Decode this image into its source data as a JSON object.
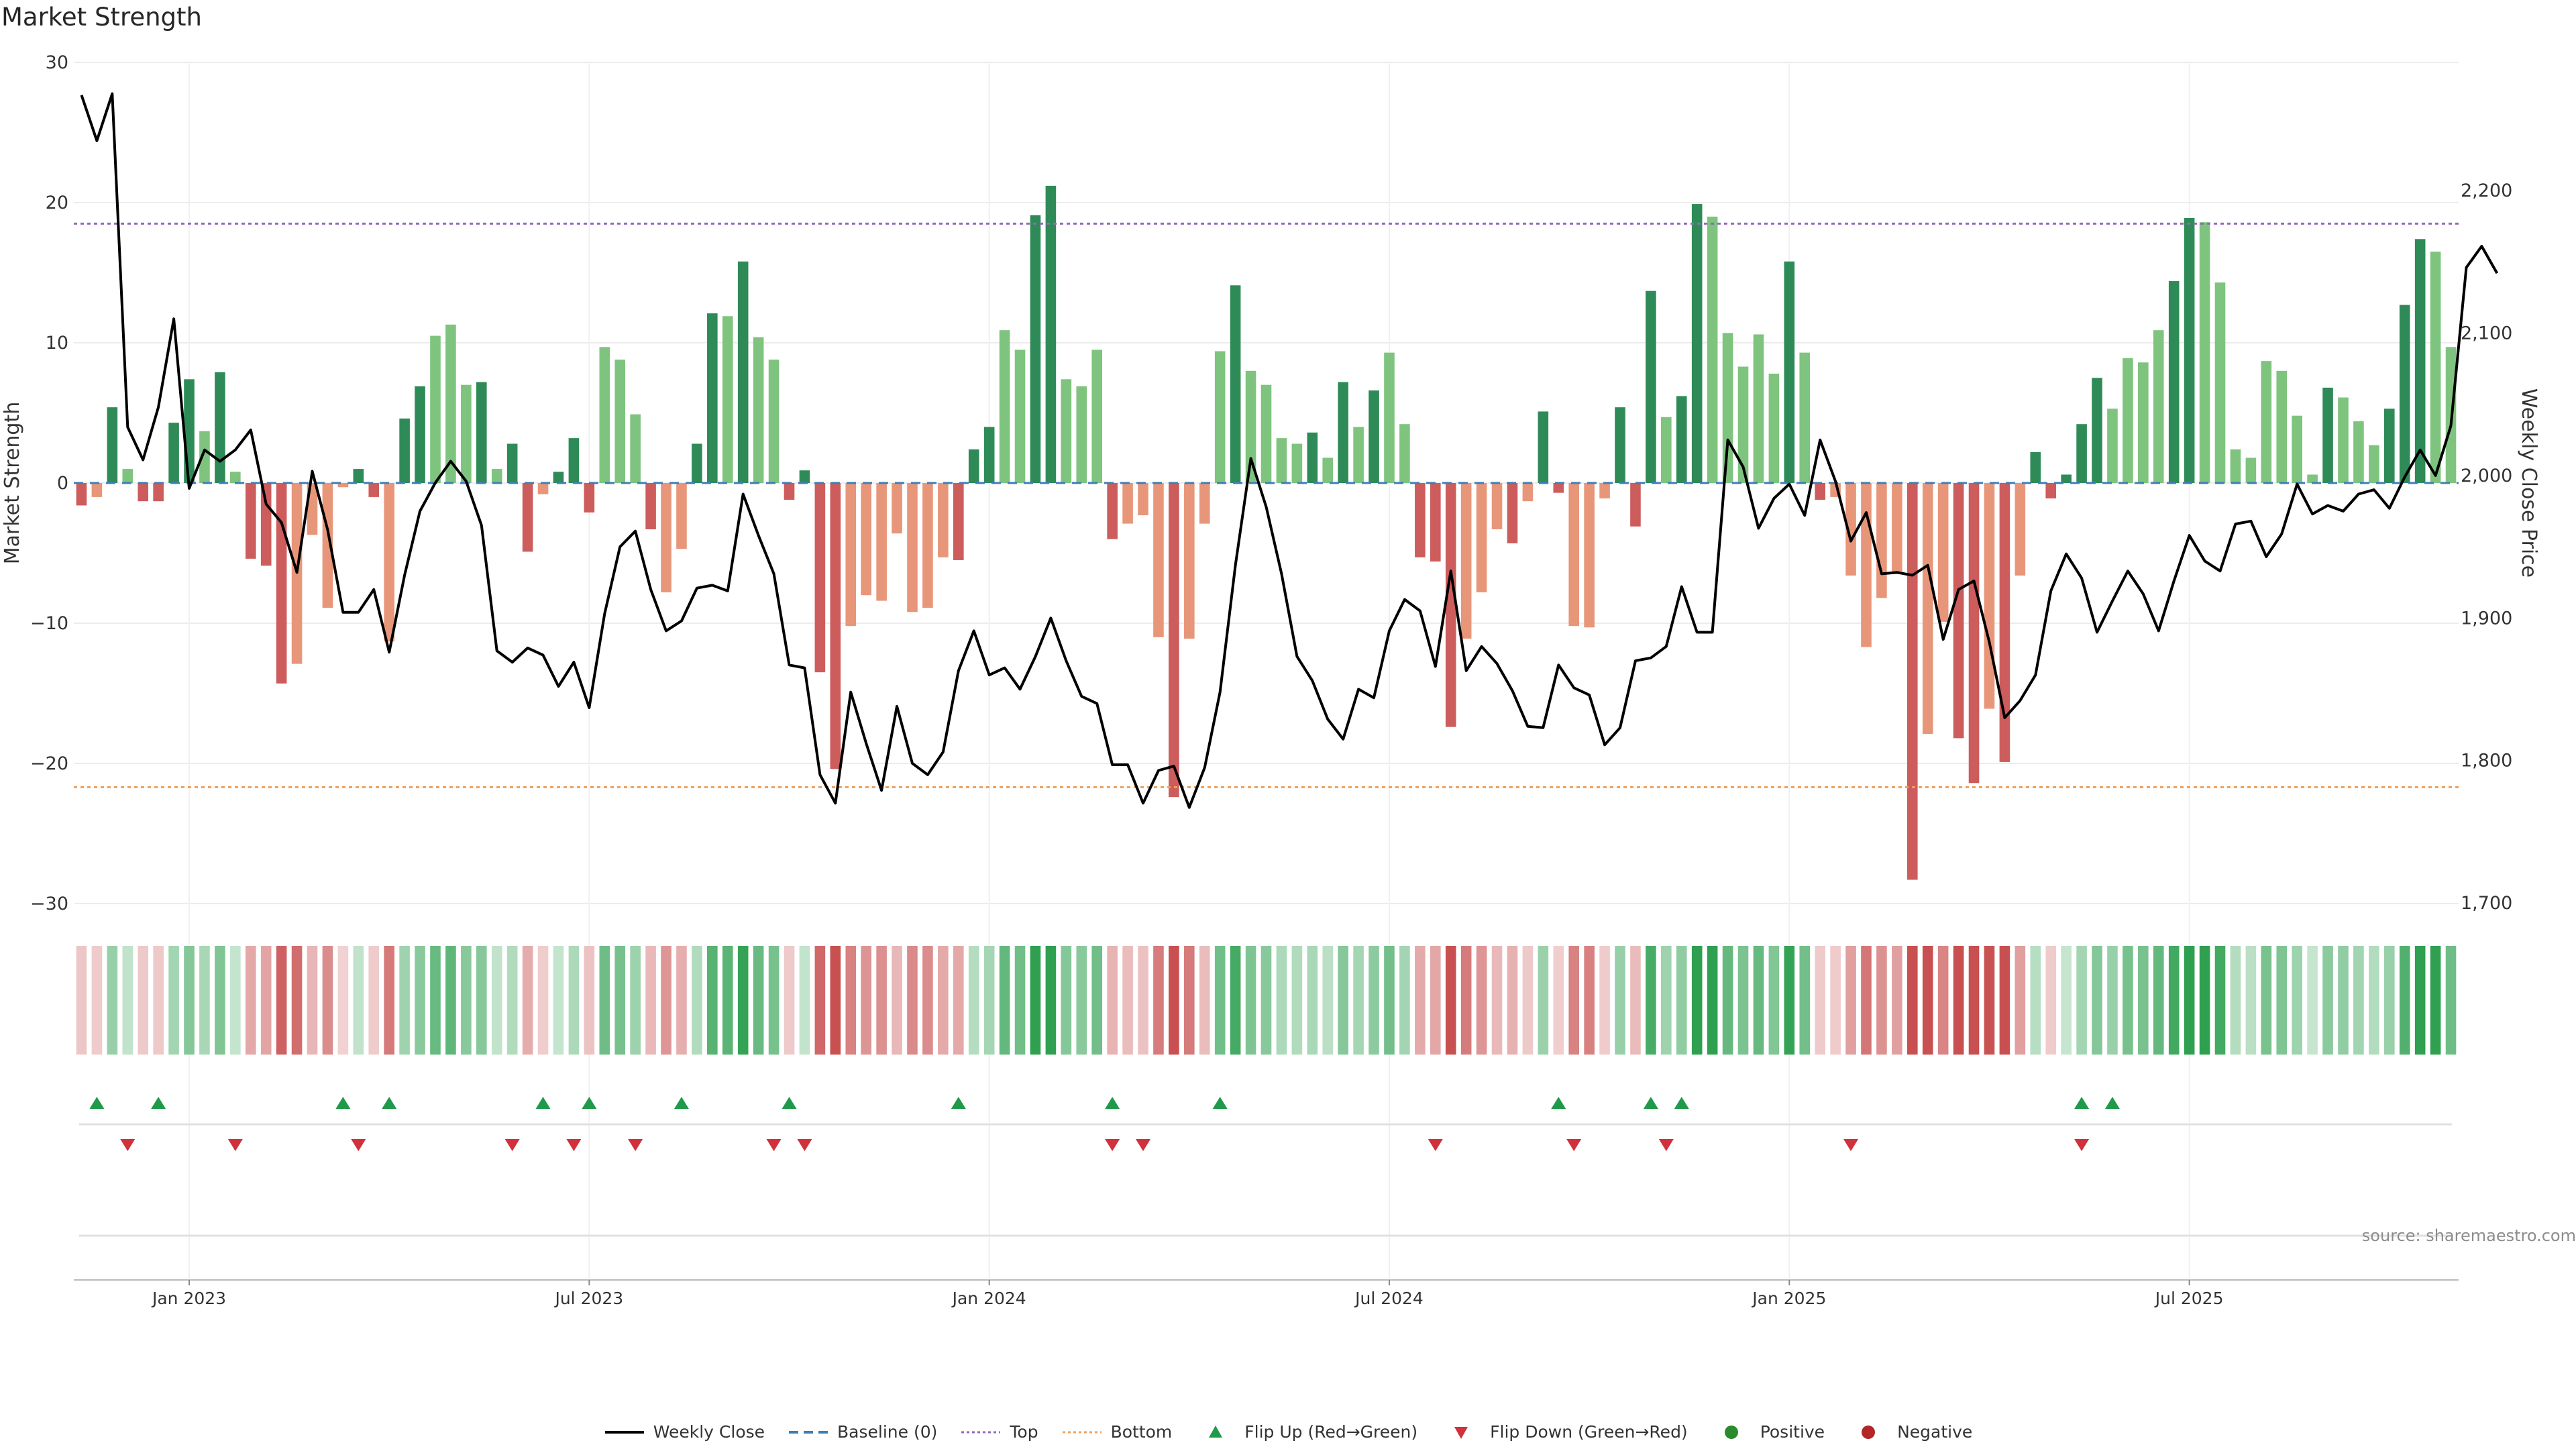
{
  "title": "Market Strength",
  "source": "source: sharemaestro.com",
  "legend": [
    {
      "key": "close",
      "label": "Weekly Close",
      "sym": "line",
      "color": "#000000"
    },
    {
      "key": "base",
      "label": "Baseline (0)",
      "sym": "dash",
      "color": "#3d7fb5"
    },
    {
      "key": "top",
      "label": "Top",
      "sym": "dot",
      "color": "#9467bd"
    },
    {
      "key": "bottom",
      "label": "Bottom",
      "sym": "dot",
      "color": "#f0a05a"
    },
    {
      "key": "up",
      "label": "Flip Up (Red→Green)",
      "sym": "tri-up",
      "color": "#1f9a4a"
    },
    {
      "key": "down",
      "label": "Flip Down (Green→Red)",
      "sym": "tri-down",
      "color": "#d0313a"
    },
    {
      "key": "pos",
      "label": "Positive",
      "sym": "circle",
      "color": "#2b8a2b"
    },
    {
      "key": "neg",
      "label": "Negative",
      "sym": "circle",
      "color": "#b42528"
    }
  ],
  "colors": {
    "strong_pos": "#2e8b57",
    "weak_pos": "#7ec47e",
    "strong_neg": "#cd5c5c",
    "weak_neg": "#e8967a",
    "close_line": "#000000",
    "top_line": "#9467bd",
    "bottom_line": "#f0a05a",
    "baseline": "#3d7fb5"
  },
  "chart_data": {
    "type": "bar",
    "left_axis": {
      "label": "Market Strength",
      "ylim": [
        -30,
        30
      ],
      "ticks": [
        30,
        20,
        10,
        0,
        -10,
        -20,
        -30
      ]
    },
    "right_axis": {
      "label": "Weekly Close Price",
      "ylim": [
        1700,
        2290
      ],
      "ticks": [
        1700,
        1800,
        1900,
        2000,
        2100,
        2200
      ],
      "tick_labels": [
        "1,700",
        "1,800",
        "1,900",
        "2,000",
        "2,100",
        "2,200"
      ]
    },
    "x_ticks": [
      {
        "label": "Jan 2023",
        "week": 7.5
      },
      {
        "label": "Jul 2023",
        "week": 33.5
      },
      {
        "label": "Jan 2024",
        "week": 59.5
      },
      {
        "label": "Jul 2024",
        "week": 85.5
      },
      {
        "label": "Jan 2025",
        "week": 111.5
      },
      {
        "label": "Jul 2025",
        "week": 137.5
      }
    ],
    "reference_lines": {
      "top": 18.5,
      "bottom": -21.7,
      "baseline": 0
    },
    "strength": [
      -1.6,
      -1,
      5.4,
      1,
      -1.3,
      -1.3,
      4.3,
      7.4,
      3.7,
      7.9,
      0.8,
      -5.4,
      -5.9,
      -14.3,
      -12.9,
      -3.7,
      -8.9,
      -0.3,
      1,
      -1,
      -11.3,
      4.6,
      6.9,
      10.5,
      11.3,
      7,
      7.2,
      1,
      2.8,
      -4.9,
      -0.8,
      0.8,
      3.2,
      -2.1,
      9.7,
      8.8,
      4.9,
      -3.3,
      -7.8,
      -4.7,
      2.8,
      12.1,
      11.9,
      15.8,
      10.4,
      8.8,
      -1.2,
      0.9,
      -13.5,
      -20.4,
      -10.2,
      -8,
      -8.4,
      -3.6,
      -9.2,
      -8.9,
      -5.3,
      -5.5,
      2.4,
      4,
      10.9,
      9.5,
      19.1,
      21.2,
      7.4,
      6.9,
      9.5,
      -4,
      -2.9,
      -2.3,
      -11,
      -22.4,
      -11.1,
      -2.9,
      9.4,
      14.1,
      8,
      7,
      3.2,
      2.8,
      3.6,
      1.8,
      7.2,
      4,
      6.6,
      9.3,
      4.2,
      -5.3,
      -5.6,
      -17.4,
      -11.1,
      -7.8,
      -3.3,
      -4.3,
      -1.3,
      5.1,
      -0.7,
      -10.2,
      -10.3,
      -1.1,
      5.4,
      -3.1,
      13.7,
      4.7,
      6.2,
      19.9,
      19,
      10.7,
      8.3,
      10.6,
      7.8,
      15.8,
      9.3,
      -1.2,
      -1,
      -6.6,
      -11.7,
      -8.2,
      -6.5,
      -28.3,
      -17.9,
      -9.9,
      -18.2,
      -21.4,
      -16.1,
      -19.9,
      -6.6,
      2.2,
      -1.1,
      0.6,
      4.2,
      7.5,
      5.3,
      8.9,
      8.6,
      10.9,
      14.4,
      18.9,
      18.6,
      14.3,
      2.4,
      1.8,
      8.7,
      8,
      4.8,
      0.6,
      6.8,
      6.1,
      4.4,
      2.7,
      5.3,
      12.7,
      17.4,
      16.5,
      9.7
    ],
    "weekly_close": [
      2267,
      2235,
      2268,
      2034,
      2011,
      2048,
      2110,
      1991,
      2018,
      2010,
      2018,
      2032,
      1980,
      1967,
      1932,
      2003,
      1962,
      1904,
      1904,
      1920,
      1876,
      1930,
      1975,
      1995,
      2010,
      1996,
      1965,
      1877,
      1869,
      1879,
      1874,
      1852,
      1869,
      1837,
      1903,
      1950,
      1961,
      1920,
      1891,
      1898,
      1921,
      1923,
      1919,
      1987,
      1958,
      1931,
      1867,
      1865,
      1790,
      1770,
      1848,
      1812,
      1779,
      1838,
      1798,
      1790,
      1806,
      1863,
      1891,
      1860,
      1865,
      1850,
      1873,
      1900,
      1870,
      1845,
      1840,
      1797,
      1797,
      1770,
      1793,
      1796,
      1767,
      1795,
      1848,
      1937,
      2012,
      1978,
      1931,
      1873,
      1856,
      1829,
      1815,
      1850,
      1844,
      1891,
      1913,
      1905,
      1866,
      1933,
      1863,
      1880,
      1868,
      1849,
      1824,
      1823,
      1867,
      1851,
      1846,
      1811,
      1823,
      1870,
      1872,
      1880,
      1922,
      1890,
      1890,
      2025,
      2006,
      1963,
      1984,
      1994,
      1972,
      2025,
      1996,
      1954,
      1974,
      1931,
      1932,
      1930,
      1937,
      1885,
      1920,
      1926,
      1883,
      1830,
      1842,
      1860,
      1919,
      1945,
      1928,
      1890,
      1912,
      1933,
      1917,
      1891,
      1926,
      1958,
      1940,
      1933,
      1966,
      1968,
      1943,
      1959,
      1994,
      1973,
      1979,
      1975,
      1987,
      1990,
      1977,
      1999,
      2018,
      2000,
      2035,
      2146,
      2161,
      2142
    ],
    "heat_strip": "one tile per week, shade follows sign and magnitude of strength",
    "flip_up_weeks": [
      1,
      5,
      17,
      20,
      30,
      33,
      39,
      46,
      57,
      67,
      74,
      96,
      102,
      104,
      130,
      132
    ],
    "flip_down_weeks": [
      3,
      10,
      18,
      28,
      32,
      36,
      45,
      47,
      67,
      69,
      88,
      97,
      103,
      115,
      130
    ]
  }
}
